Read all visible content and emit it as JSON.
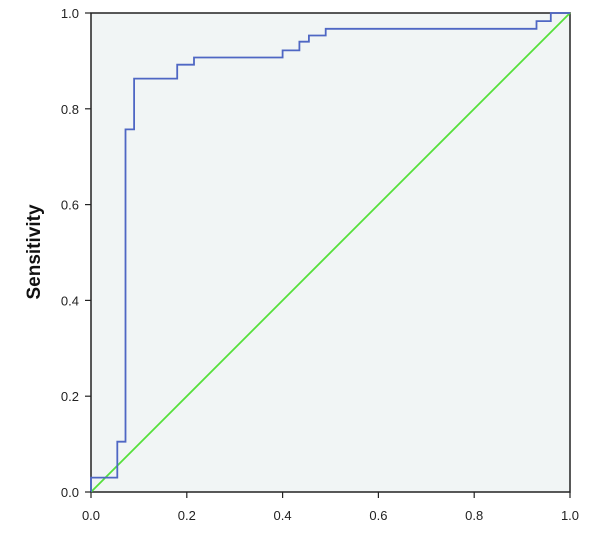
{
  "chart_data": {
    "type": "line",
    "title": "",
    "xlabel": "",
    "ylabel": "Sensitivity",
    "xlim": [
      0.0,
      1.0
    ],
    "ylim": [
      0.0,
      1.0
    ],
    "x_ticks": [
      "0.0",
      "0.2",
      "0.4",
      "0.6",
      "0.8",
      "1.0"
    ],
    "y_ticks": [
      "0.0",
      "0.2",
      "0.4",
      "0.6",
      "0.8",
      "1.0"
    ],
    "grid": false,
    "legend": "none",
    "series": [
      {
        "color": "#4f67c4",
        "step": true,
        "points": [
          [
            0.0,
            0.0
          ],
          [
            0.0,
            0.03
          ],
          [
            0.055,
            0.03
          ],
          [
            0.055,
            0.105
          ],
          [
            0.072,
            0.105
          ],
          [
            0.072,
            0.757
          ],
          [
            0.09,
            0.757
          ],
          [
            0.09,
            0.863
          ],
          [
            0.18,
            0.863
          ],
          [
            0.18,
            0.892
          ],
          [
            0.215,
            0.892
          ],
          [
            0.215,
            0.907
          ],
          [
            0.4,
            0.907
          ],
          [
            0.4,
            0.922
          ],
          [
            0.435,
            0.922
          ],
          [
            0.435,
            0.94
          ],
          [
            0.455,
            0.94
          ],
          [
            0.455,
            0.953
          ],
          [
            0.49,
            0.953
          ],
          [
            0.49,
            0.967
          ],
          [
            0.93,
            0.967
          ],
          [
            0.93,
            0.983
          ],
          [
            0.96,
            0.983
          ],
          [
            0.96,
            1.0
          ],
          [
            1.0,
            1.0
          ]
        ]
      },
      {
        "color": "#55e03a",
        "step": false,
        "points": [
          [
            0.0,
            0.0
          ],
          [
            1.0,
            1.0
          ]
        ]
      }
    ]
  },
  "colors": {
    "plot_background": "#f1f5f5",
    "frame": "#222222"
  }
}
